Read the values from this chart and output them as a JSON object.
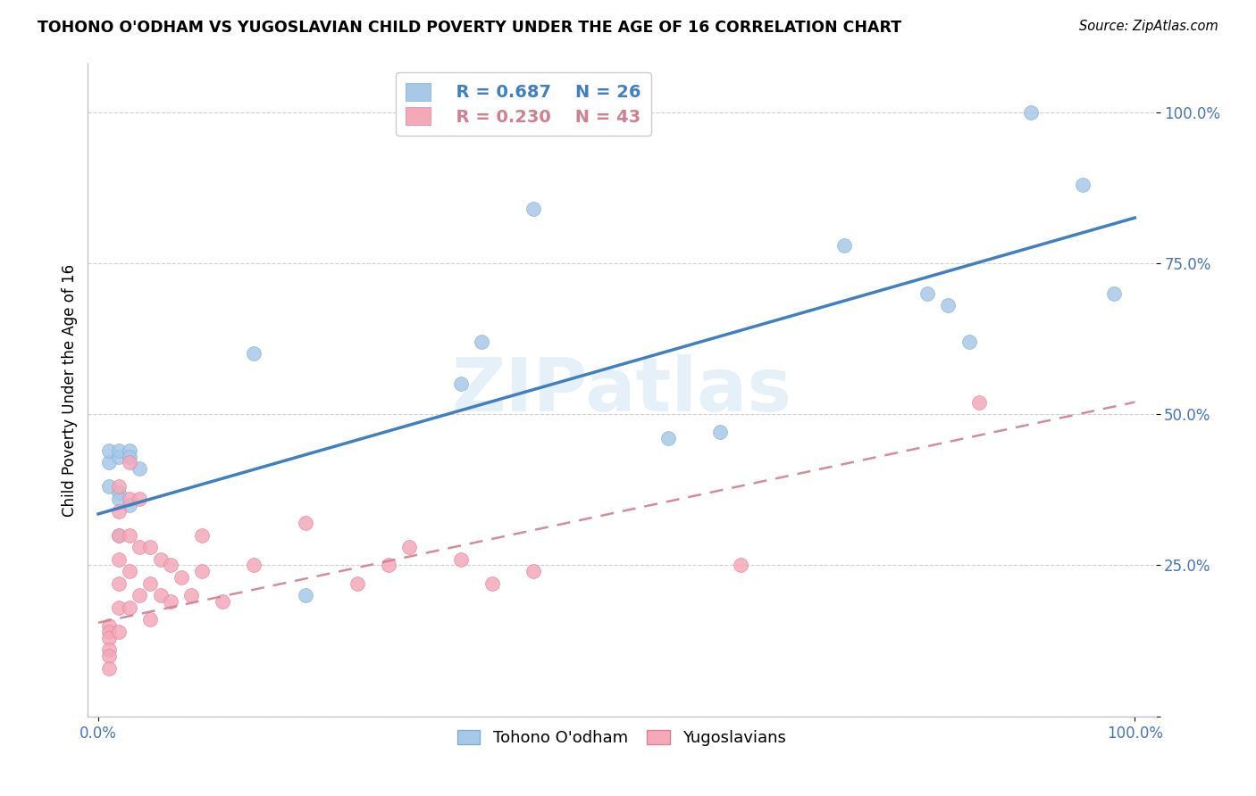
{
  "title": "TOHONO O'ODHAM VS YUGOSLAVIAN CHILD POVERTY UNDER THE AGE OF 16 CORRELATION CHART",
  "source": "Source: ZipAtlas.com",
  "ylabel": "Child Poverty Under the Age of 16",
  "background_color": "#ffffff",
  "grid_color": "#d0d0d0",
  "watermark": "ZIPatlas",
  "blue_label": "Tohono O'odham",
  "pink_label": "Yugoslavians",
  "blue_r": "R = 0.687",
  "blue_n": "N = 26",
  "pink_r": "R = 0.230",
  "pink_n": "N = 43",
  "blue_color": "#a8c8e8",
  "blue_edge_color": "#7aafd4",
  "blue_line_color": "#4080c0",
  "pink_color": "#f4a8b8",
  "pink_edge_color": "#e080a0",
  "pink_line_color": "#d08090",
  "blue_scatter_x": [
    0.01,
    0.01,
    0.01,
    0.02,
    0.02,
    0.02,
    0.02,
    0.03,
    0.03,
    0.03,
    0.04,
    0.02,
    0.15,
    0.35,
    0.55,
    0.72,
    0.8,
    0.82,
    0.84,
    0.9,
    0.95,
    0.98,
    0.2,
    0.37,
    0.6,
    0.42
  ],
  "blue_scatter_y": [
    0.42,
    0.44,
    0.38,
    0.43,
    0.44,
    0.37,
    0.36,
    0.44,
    0.43,
    0.35,
    0.41,
    0.3,
    0.6,
    0.55,
    0.46,
    0.78,
    0.7,
    0.68,
    0.62,
    1.0,
    0.88,
    0.7,
    0.2,
    0.62,
    0.47,
    0.84
  ],
  "pink_scatter_x": [
    0.01,
    0.01,
    0.01,
    0.01,
    0.01,
    0.01,
    0.02,
    0.02,
    0.02,
    0.02,
    0.02,
    0.02,
    0.02,
    0.03,
    0.03,
    0.03,
    0.03,
    0.03,
    0.04,
    0.04,
    0.04,
    0.05,
    0.05,
    0.05,
    0.06,
    0.06,
    0.07,
    0.07,
    0.08,
    0.09,
    0.1,
    0.1,
    0.12,
    0.15,
    0.2,
    0.25,
    0.28,
    0.3,
    0.35,
    0.38,
    0.42,
    0.62,
    0.85
  ],
  "pink_scatter_y": [
    0.15,
    0.14,
    0.13,
    0.11,
    0.1,
    0.08,
    0.38,
    0.34,
    0.3,
    0.26,
    0.22,
    0.18,
    0.14,
    0.42,
    0.36,
    0.3,
    0.24,
    0.18,
    0.36,
    0.28,
    0.2,
    0.28,
    0.22,
    0.16,
    0.26,
    0.2,
    0.25,
    0.19,
    0.23,
    0.2,
    0.3,
    0.24,
    0.19,
    0.25,
    0.32,
    0.22,
    0.25,
    0.28,
    0.26,
    0.22,
    0.24,
    0.25,
    0.52
  ],
  "blue_line_y_start": 0.335,
  "blue_line_y_end": 0.825,
  "pink_line_y_start": 0.155,
  "pink_line_y_end": 0.52,
  "ylim_min": 0.0,
  "ylim_max": 1.08,
  "xlim_min": -0.01,
  "xlim_max": 1.02
}
